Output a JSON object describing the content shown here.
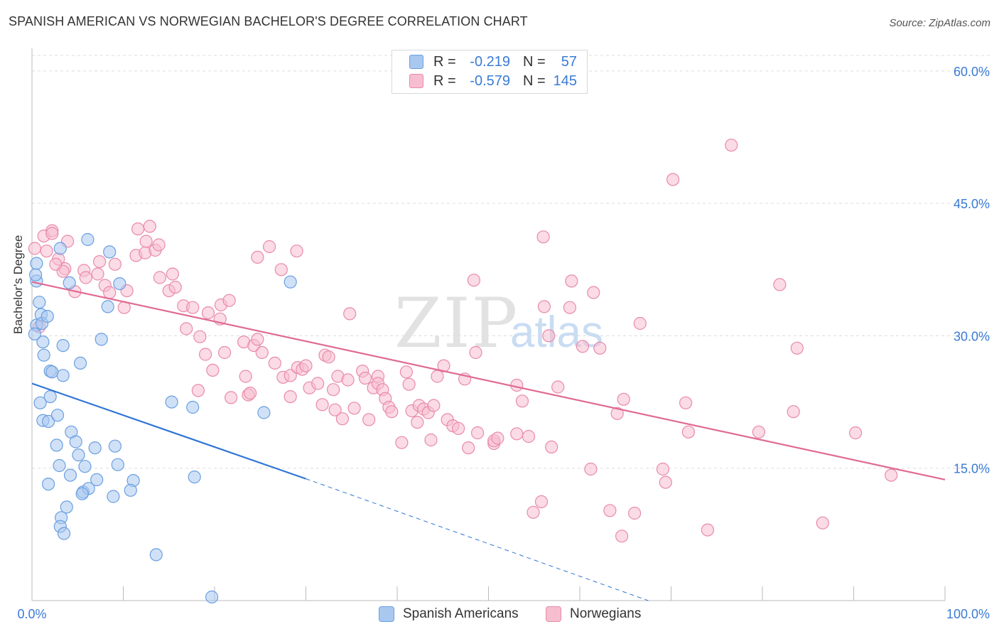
{
  "title": "SPANISH AMERICAN VS NORWEGIAN BACHELOR'S DEGREE CORRELATION CHART",
  "source": "Source: ZipAtlas.com",
  "watermark": {
    "zip": "ZIP",
    "atlas": "atlas"
  },
  "legend": {
    "r_label": "R =",
    "n_label": "N =",
    "items": [
      {
        "name": "Spanish Americans",
        "r": "-0.219",
        "n": "57",
        "fill": "#a9c8f0",
        "stroke": "#6a9fe0"
      },
      {
        "name": "Norwegians",
        "r": "-0.579",
        "n": "145",
        "fill": "#f7bed0",
        "stroke": "#e88aaa"
      }
    ]
  },
  "colors": {
    "blue_line": "#2f75d6",
    "pink_line": "#e06a93",
    "tick_text": "#3a7bd5",
    "grid": "#dcdcdc"
  },
  "chart_data": {
    "type": "scatter",
    "title": "SPANISH AMERICAN VS NORWEGIAN BACHELOR'S DEGREE CORRELATION CHART",
    "xlabel": "",
    "ylabel": "Bachelor's Degree",
    "xlim": [
      0,
      100
    ],
    "ylim": [
      0,
      62
    ],
    "x_tick_labels": [
      "0.0%",
      "100.0%"
    ],
    "y_ticks": [
      15,
      30,
      45,
      60
    ],
    "y_tick_labels": [
      "15.0%",
      "30.0%",
      "45.0%",
      "60.0%"
    ],
    "series": [
      {
        "name": "Spanish Americans",
        "trend": {
          "x": [
            0,
            30
          ],
          "y": [
            24.6,
            13.8
          ],
          "dashed_to": [
            67.5,
            0
          ]
        },
        "points": [
          [
            0.5,
            36.2
          ],
          [
            0.5,
            38.2
          ],
          [
            0.4,
            36.9
          ],
          [
            0.8,
            33.8
          ],
          [
            0.5,
            31.2
          ],
          [
            1.0,
            32.4
          ],
          [
            1.1,
            31.4
          ],
          [
            1.2,
            29.3
          ],
          [
            1.7,
            32.2
          ],
          [
            3.4,
            28.9
          ],
          [
            1.3,
            27.8
          ],
          [
            0.3,
            30.2
          ],
          [
            2.0,
            26.0
          ],
          [
            2.2,
            25.9
          ],
          [
            3.4,
            25.5
          ],
          [
            5.3,
            26.9
          ],
          [
            0.9,
            22.4
          ],
          [
            2.0,
            23.1
          ],
          [
            1.2,
            20.4
          ],
          [
            1.8,
            20.3
          ],
          [
            2.8,
            21.0
          ],
          [
            4.3,
            19.1
          ],
          [
            4.8,
            18.0
          ],
          [
            2.7,
            17.6
          ],
          [
            5.1,
            16.5
          ],
          [
            6.9,
            17.3
          ],
          [
            9.1,
            17.5
          ],
          [
            3.0,
            15.3
          ],
          [
            5.8,
            15.2
          ],
          [
            9.4,
            15.4
          ],
          [
            4.2,
            14.2
          ],
          [
            7.1,
            13.7
          ],
          [
            11.1,
            13.6
          ],
          [
            1.8,
            13.2
          ],
          [
            5.6,
            12.3
          ],
          [
            6.2,
            12.7
          ],
          [
            8.9,
            11.8
          ],
          [
            10.8,
            12.5
          ],
          [
            3.8,
            10.6
          ],
          [
            3.2,
            9.4
          ],
          [
            3.1,
            8.4
          ],
          [
            3.5,
            7.6
          ],
          [
            3.1,
            39.9
          ],
          [
            6.1,
            40.9
          ],
          [
            4.1,
            36.0
          ],
          [
            8.5,
            39.5
          ],
          [
            9.6,
            35.9
          ],
          [
            8.3,
            33.3
          ],
          [
            7.6,
            29.6
          ],
          [
            15.3,
            22.5
          ],
          [
            17.6,
            21.9
          ],
          [
            17.8,
            14.0
          ],
          [
            25.4,
            21.3
          ],
          [
            28.3,
            36.1
          ],
          [
            13.6,
            5.2
          ],
          [
            19.7,
            0.4
          ],
          [
            5.5,
            12.1
          ]
        ]
      },
      {
        "name": "Norwegians",
        "trend": {
          "x": [
            0,
            100
          ],
          "y": [
            36.1,
            13.7
          ]
        },
        "points": [
          [
            0.3,
            39.9
          ],
          [
            1.3,
            41.3
          ],
          [
            2.2,
            41.9
          ],
          [
            2.2,
            41.6
          ],
          [
            3.9,
            40.7
          ],
          [
            1.6,
            39.6
          ],
          [
            2.9,
            38.7
          ],
          [
            3.6,
            37.6
          ],
          [
            4.7,
            35.0
          ],
          [
            5.7,
            37.4
          ],
          [
            5.9,
            36.6
          ],
          [
            7.2,
            37.0
          ],
          [
            7.4,
            38.4
          ],
          [
            9.1,
            38.1
          ],
          [
            8.0,
            35.7
          ],
          [
            8.5,
            34.9
          ],
          [
            10.1,
            33.2
          ],
          [
            10.4,
            35.1
          ],
          [
            11.4,
            39.1
          ],
          [
            11.6,
            42.1
          ],
          [
            12.4,
            39.4
          ],
          [
            12.5,
            40.7
          ],
          [
            12.9,
            42.4
          ],
          [
            13.5,
            39.7
          ],
          [
            13.9,
            40.3
          ],
          [
            14.0,
            36.6
          ],
          [
            15.0,
            35.1
          ],
          [
            15.4,
            37.0
          ],
          [
            15.7,
            35.5
          ],
          [
            16.6,
            33.4
          ],
          [
            16.9,
            30.8
          ],
          [
            17.6,
            33.2
          ],
          [
            18.2,
            23.8
          ],
          [
            18.4,
            29.9
          ],
          [
            19.0,
            27.9
          ],
          [
            19.3,
            32.6
          ],
          [
            19.8,
            26.1
          ],
          [
            20.6,
            31.9
          ],
          [
            20.7,
            33.5
          ],
          [
            21.1,
            28.1
          ],
          [
            21.6,
            34.0
          ],
          [
            21.8,
            23.0
          ],
          [
            23.2,
            29.3
          ],
          [
            23.4,
            25.4
          ],
          [
            23.7,
            23.3
          ],
          [
            23.9,
            23.5
          ],
          [
            24.3,
            28.9
          ],
          [
            24.7,
            29.6
          ],
          [
            25.2,
            28.1
          ],
          [
            24.7,
            38.9
          ],
          [
            26.0,
            40.1
          ],
          [
            26.6,
            26.9
          ],
          [
            27.3,
            37.5
          ],
          [
            27.5,
            25.3
          ],
          [
            28.3,
            25.5
          ],
          [
            28.3,
            23.1
          ],
          [
            29.0,
            39.6
          ],
          [
            29.1,
            26.4
          ],
          [
            29.6,
            26.2
          ],
          [
            30.0,
            26.6
          ],
          [
            30.4,
            24.1
          ],
          [
            31.3,
            24.6
          ],
          [
            31.8,
            22.2
          ],
          [
            32.1,
            27.8
          ],
          [
            32.5,
            27.6
          ],
          [
            33.0,
            23.9
          ],
          [
            33.2,
            21.6
          ],
          [
            33.5,
            25.4
          ],
          [
            34.0,
            20.6
          ],
          [
            34.6,
            25.0
          ],
          [
            34.8,
            32.5
          ],
          [
            35.3,
            21.8
          ],
          [
            36.2,
            26.0
          ],
          [
            36.5,
            25.2
          ],
          [
            36.9,
            20.5
          ],
          [
            37.4,
            24.1
          ],
          [
            37.9,
            25.4
          ],
          [
            37.9,
            24.6
          ],
          [
            38.4,
            23.9
          ],
          [
            38.7,
            22.9
          ],
          [
            39.1,
            21.9
          ],
          [
            39.4,
            21.4
          ],
          [
            40.5,
            17.9
          ],
          [
            41.0,
            25.9
          ],
          [
            41.3,
            24.5
          ],
          [
            41.6,
            21.5
          ],
          [
            42.2,
            20.2
          ],
          [
            42.4,
            22.1
          ],
          [
            42.9,
            21.7
          ],
          [
            43.4,
            21.3
          ],
          [
            43.7,
            18.2
          ],
          [
            44.0,
            22.1
          ],
          [
            44.4,
            25.4
          ],
          [
            45.1,
            26.6
          ],
          [
            45.5,
            20.5
          ],
          [
            46.1,
            19.8
          ],
          [
            46.7,
            19.5
          ],
          [
            47.4,
            25.1
          ],
          [
            47.8,
            17.3
          ],
          [
            48.6,
            28.1
          ],
          [
            48.4,
            36.3
          ],
          [
            48.8,
            19.0
          ],
          [
            50.6,
            17.8
          ],
          [
            50.6,
            18.1
          ],
          [
            51.0,
            18.4
          ],
          [
            53.1,
            24.4
          ],
          [
            53.1,
            18.9
          ],
          [
            53.7,
            22.6
          ],
          [
            54.4,
            18.6
          ],
          [
            54.9,
            10.0
          ],
          [
            55.8,
            11.2
          ],
          [
            56.0,
            41.2
          ],
          [
            56.1,
            33.3
          ],
          [
            56.6,
            30.0
          ],
          [
            56.9,
            17.4
          ],
          [
            57.6,
            24.2
          ],
          [
            58.9,
            33.2
          ],
          [
            59.1,
            36.2
          ],
          [
            60.3,
            28.8
          ],
          [
            61.2,
            14.9
          ],
          [
            61.5,
            34.9
          ],
          [
            62.2,
            28.6
          ],
          [
            63.3,
            10.2
          ],
          [
            64.1,
            21.2
          ],
          [
            64.6,
            7.3
          ],
          [
            64.8,
            22.8
          ],
          [
            66.0,
            9.9
          ],
          [
            66.6,
            31.4
          ],
          [
            69.1,
            14.9
          ],
          [
            69.4,
            13.4
          ],
          [
            70.2,
            47.7
          ],
          [
            71.6,
            22.4
          ],
          [
            71.9,
            19.1
          ],
          [
            74.0,
            8.0
          ],
          [
            76.6,
            51.6
          ],
          [
            79.6,
            19.1
          ],
          [
            81.9,
            35.8
          ],
          [
            83.4,
            21.4
          ],
          [
            83.8,
            28.6
          ],
          [
            86.6,
            8.8
          ],
          [
            90.2,
            19.0
          ],
          [
            94.1,
            14.2
          ],
          [
            3.4,
            37.3
          ],
          [
            0.8,
            31.0
          ],
          [
            2.6,
            38.1
          ]
        ]
      }
    ]
  }
}
